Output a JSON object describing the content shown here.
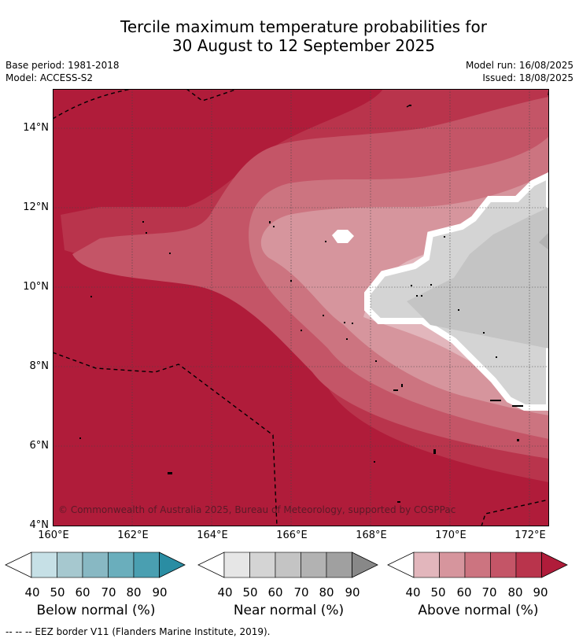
{
  "title": {
    "line1": "Tercile maximum temperature probabilities for",
    "line2": "30 August to 12 September 2025"
  },
  "meta": {
    "base_period": "Base period: 1981-2018",
    "model": "Model: ACCESS-S2",
    "model_run": "Model run: 16/08/2025",
    "issued": "Issued: 18/08/2025"
  },
  "map": {
    "copyright": "© Commonwealth of Australia 2025, Bureau of Meteorology, supported by COSPPac",
    "lat_ticks": [
      "14°N",
      "12°N",
      "10°N",
      "8°N",
      "6°N",
      "4°N"
    ],
    "lon_ticks": [
      "160°E",
      "162°E",
      "164°E",
      "166°E",
      "168°E",
      "170°E",
      "172°E"
    ],
    "lon_range": [
      160,
      172.5
    ],
    "lat_range": [
      4,
      15
    ],
    "grid": true
  },
  "legends": [
    {
      "title": "Below normal (%)",
      "labels": [
        "40",
        "50",
        "60",
        "70",
        "80",
        "90"
      ],
      "colors": [
        "#ffffff",
        "#c6e0e6",
        "#a6c8cf",
        "#88b8c3",
        "#6aaebc",
        "#4a9fb1",
        "#2a8da3"
      ]
    },
    {
      "title": "Near normal (%)",
      "labels": [
        "40",
        "50",
        "60",
        "70",
        "80",
        "90"
      ],
      "colors": [
        "#ffffff",
        "#e6e6e6",
        "#d4d4d4",
        "#c4c4c4",
        "#b2b2b2",
        "#a0a0a0",
        "#888888"
      ]
    },
    {
      "title": "Above normal (%)",
      "labels": [
        "40",
        "50",
        "60",
        "70",
        "80",
        "90"
      ],
      "colors": [
        "#ffffff",
        "#e2b6bc",
        "#d6959d",
        "#cc7480",
        "#c45567",
        "#b9344c",
        "#b01c3a"
      ]
    }
  ],
  "footnote": "--  --  -- EEZ border V11 (Flanders Marine Institute, 2019)."
}
